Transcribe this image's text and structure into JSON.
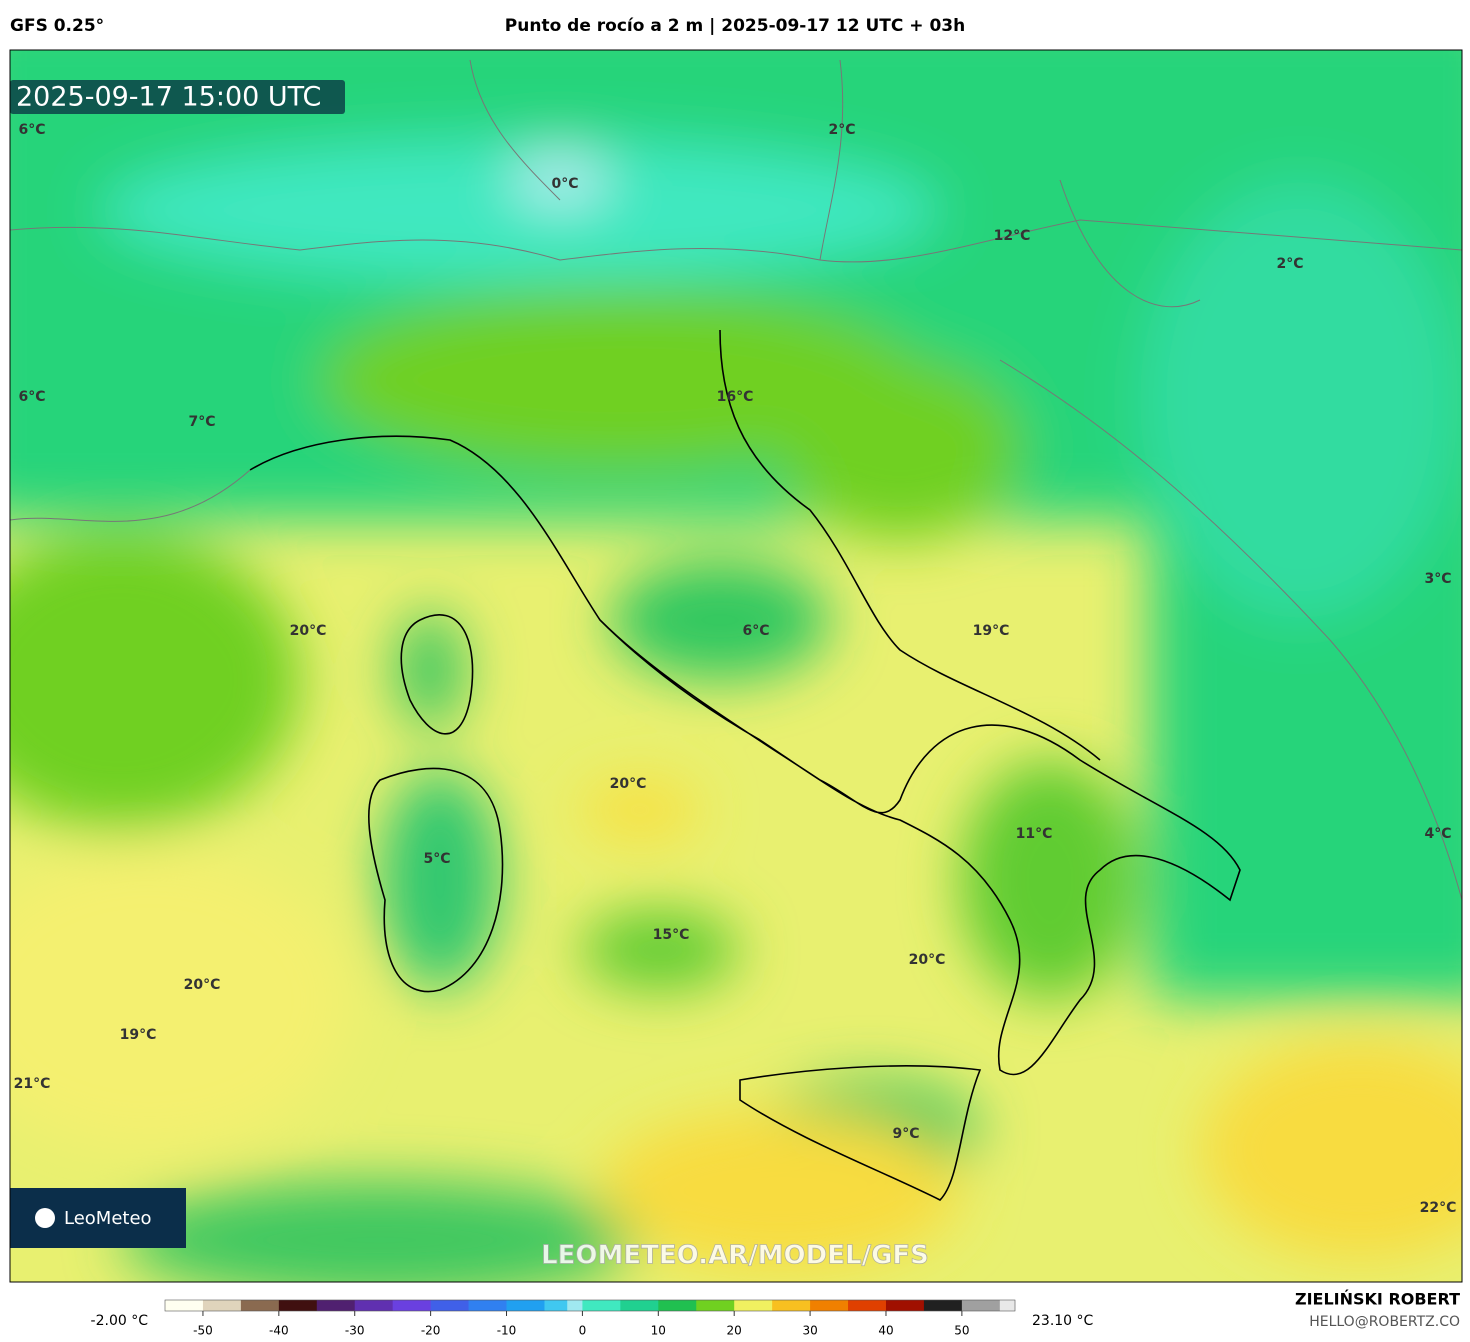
{
  "header": {
    "model": "GFS 0.25°",
    "title": "Punto de rocío a 2 m | 2025-09-17 12 UTC + 03h"
  },
  "map": {
    "timestamp": "2025-09-17 15:00 UTC",
    "watermark": "LEOMETEO.AR/MODEL/GFS",
    "logo": "LeoMeteo",
    "labels": [
      "6°C",
      "2°C",
      "0°C",
      "12°C",
      "2°C",
      "6°C",
      "7°C",
      "16°C",
      "20°C",
      "6°C",
      "19°C",
      "3°C",
      "20°C",
      "11°C",
      "4°C",
      "5°C",
      "15°C",
      "20°C",
      "20°C",
      "19°C",
      "21°C",
      "9°C",
      "22°C"
    ]
  },
  "colorbar": {
    "min_label": "-2.00 °C",
    "max_label": "23.10 °C",
    "range": [
      -55,
      57
    ],
    "ticks": [
      -50,
      -40,
      -30,
      -20,
      -10,
      0,
      10,
      20,
      30,
      40,
      50
    ],
    "stops": [
      {
        "value": -55,
        "color": "#fffff0"
      },
      {
        "value": -50,
        "color": "#e0d4bc"
      },
      {
        "value": -45,
        "color": "#8a6a50"
      },
      {
        "value": -40,
        "color": "#401010"
      },
      {
        "value": -35,
        "color": "#502070"
      },
      {
        "value": -30,
        "color": "#6030b0"
      },
      {
        "value": -25,
        "color": "#6a40e0"
      },
      {
        "value": -20,
        "color": "#4060e8"
      },
      {
        "value": -15,
        "color": "#3080f0"
      },
      {
        "value": -10,
        "color": "#20a0f0"
      },
      {
        "value": -5,
        "color": "#40c8f0"
      },
      {
        "value": -2,
        "color": "#a0e8f0"
      },
      {
        "value": 0,
        "color": "#40e8c0"
      },
      {
        "value": 5,
        "color": "#20d090"
      },
      {
        "value": 10,
        "color": "#20c050"
      },
      {
        "value": 15,
        "color": "#70d020"
      },
      {
        "value": 20,
        "color": "#f0f060"
      },
      {
        "value": 25,
        "color": "#f8c020"
      },
      {
        "value": 30,
        "color": "#f08000"
      },
      {
        "value": 35,
        "color": "#e04000"
      },
      {
        "value": 40,
        "color": "#a01000"
      },
      {
        "value": 45,
        "color": "#202020"
      },
      {
        "value": 50,
        "color": "#a0a0a0"
      },
      {
        "value": 55,
        "color": "#e8e8e8"
      }
    ]
  },
  "footer": {
    "author": "ZIELIŃSKI ROBERT",
    "email": "HELLO@ROBERTZ.CO"
  }
}
